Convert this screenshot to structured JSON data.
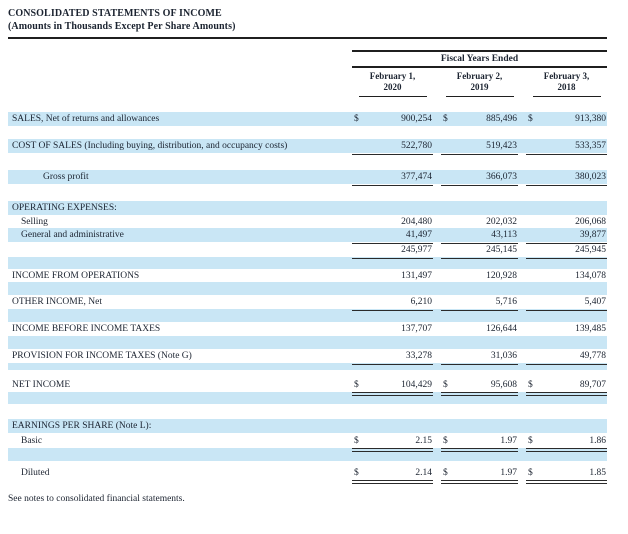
{
  "page": {
    "title": "CONSOLIDATED STATEMENTS OF INCOME",
    "subtitle": "(Amounts in Thousands Except Per Share Amounts)",
    "footnote": "See notes to consolidated financial statements."
  },
  "colors": {
    "row_highlight": "#c9e6f5",
    "text": "#1b2330",
    "rule": "#1f1f1f"
  },
  "table": {
    "span_header": "Fiscal Years Ended",
    "currency_symbol": "$",
    "columns": [
      {
        "line1": "February 1,",
        "line2": "2020"
      },
      {
        "line1": "February 2,",
        "line2": "2019"
      },
      {
        "line1": "February 3,",
        "line2": "2018"
      }
    ],
    "rows": [
      {
        "type": "item",
        "bg": "blue",
        "h": 14,
        "indent": 0,
        "label": "SALES, Net of returns and allowances",
        "dollar": true,
        "values": [
          "900,254",
          "885,496",
          "913,380"
        ],
        "underline": "none"
      },
      {
        "type": "spacer",
        "bg": "white",
        "h": 13
      },
      {
        "type": "item",
        "bg": "blue",
        "h": 14,
        "indent": 0,
        "label": "COST OF SALES (Including buying, distribution, and occupancy costs)",
        "dollar": false,
        "values": [
          "522,780",
          "519,423",
          "533,357"
        ],
        "underline": "single"
      },
      {
        "type": "spacer",
        "bg": "white",
        "h": 17
      },
      {
        "type": "item",
        "bg": "blue",
        "h": 14,
        "indent": 2,
        "label": "Gross profit",
        "dollar": false,
        "values": [
          "377,474",
          "366,073",
          "380,023"
        ],
        "underline": "single"
      },
      {
        "type": "spacer",
        "bg": "white",
        "h": 17
      },
      {
        "type": "item",
        "bg": "blue",
        "h": 14,
        "indent": 0,
        "label": "OPERATING EXPENSES:",
        "dollar": false,
        "values": null,
        "underline": "none"
      },
      {
        "type": "item",
        "bg": "white",
        "h": 13,
        "indent": 1,
        "label": "Selling",
        "dollar": false,
        "values": [
          "204,480",
          "202,032",
          "206,068"
        ],
        "underline": "none"
      },
      {
        "type": "item",
        "bg": "blue",
        "h": 14,
        "indent": 1,
        "label": "General and administrative",
        "dollar": false,
        "values": [
          "41,497",
          "43,113",
          "39,877"
        ],
        "underline": "single"
      },
      {
        "type": "item",
        "bg": "white",
        "h": 15,
        "indent": 0,
        "label": "",
        "dollar": false,
        "values": [
          "245,977",
          "245,145",
          "245,945"
        ],
        "underline": "single"
      },
      {
        "type": "spacer",
        "bg": "blue",
        "h": 12
      },
      {
        "type": "item",
        "bg": "white",
        "h": 13,
        "indent": 0,
        "label": "INCOME FROM OPERATIONS",
        "dollar": false,
        "values": [
          "131,497",
          "120,928",
          "134,078"
        ],
        "underline": "none"
      },
      {
        "type": "spacer",
        "bg": "blue",
        "h": 13
      },
      {
        "type": "item",
        "bg": "white",
        "h": 14,
        "indent": 0,
        "label": "OTHER INCOME, Net",
        "dollar": false,
        "values": [
          "6,210",
          "5,716",
          "5,407"
        ],
        "underline": "single"
      },
      {
        "type": "spacer",
        "bg": "blue",
        "h": 13
      },
      {
        "type": "item",
        "bg": "white",
        "h": 14,
        "indent": 0,
        "label": "INCOME BEFORE INCOME TAXES",
        "dollar": false,
        "values": [
          "137,707",
          "126,644",
          "139,485"
        ],
        "underline": "none"
      },
      {
        "type": "spacer",
        "bg": "blue",
        "h": 13
      },
      {
        "type": "item",
        "bg": "white",
        "h": 14,
        "indent": 0,
        "label": "PROVISION FOR INCOME TAXES (Note G)",
        "dollar": false,
        "values": [
          "33,278",
          "31,036",
          "49,778"
        ],
        "underline": "single"
      },
      {
        "type": "spacer",
        "bg": "blue",
        "h": 7
      },
      {
        "type": "spacer",
        "bg": "white",
        "h": 7
      },
      {
        "type": "item",
        "bg": "white",
        "h": 15,
        "indent": 0,
        "label": "NET INCOME",
        "dollar": true,
        "values": [
          "104,429",
          "95,608",
          "89,707"
        ],
        "underline": "double"
      },
      {
        "type": "spacer",
        "bg": "blue",
        "h": 12
      },
      {
        "type": "spacer",
        "bg": "white",
        "h": 15
      },
      {
        "type": "item",
        "bg": "blue",
        "h": 14,
        "indent": 0,
        "label": "EARNINGS PER SHARE (Note L):",
        "dollar": false,
        "values": null,
        "underline": "none"
      },
      {
        "type": "item",
        "bg": "white",
        "h": 15,
        "indent": 1,
        "label": "Basic",
        "dollar": true,
        "values": [
          "2.15",
          "1.97",
          "1.86"
        ],
        "underline": "double"
      },
      {
        "type": "spacer",
        "bg": "blue",
        "h": 13
      },
      {
        "type": "spacer",
        "bg": "white",
        "h": 4
      },
      {
        "type": "item",
        "bg": "white",
        "h": 15,
        "indent": 1,
        "label": "Diluted",
        "dollar": true,
        "values": [
          "2.14",
          "1.97",
          "1.85"
        ],
        "underline": "double"
      }
    ]
  }
}
